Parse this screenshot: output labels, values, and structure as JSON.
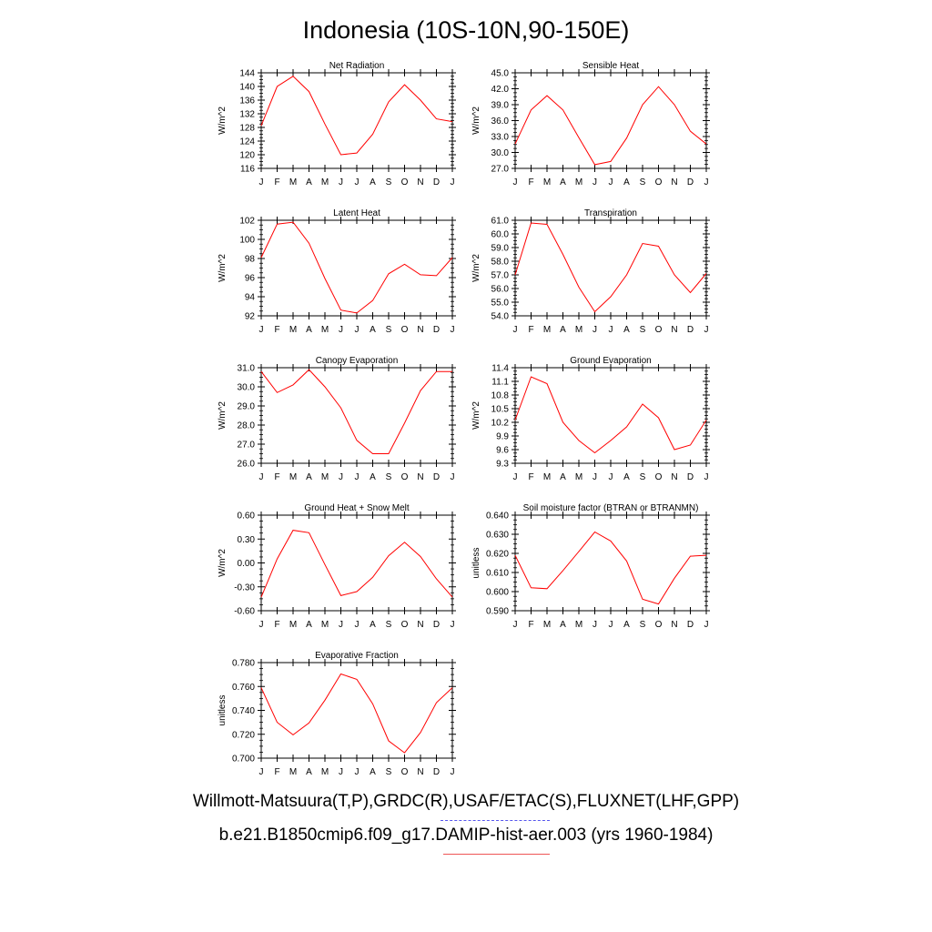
{
  "title": "Indonesia (10S-10N,90-150E)",
  "footer": {
    "observations": "Willmott-Matsuura(T,P),GRDC(R),USAF/ETAC(S),FLUXNET(LHF,GPP)",
    "model": "b.e21.B1850cmip6.f09_g17.DAMIP-hist-aer.003 (yrs 1960-1984)"
  },
  "colors": {
    "model_line": "#ff0000",
    "obs_legend": "#5555ee",
    "axis": "#000000"
  },
  "chart_data": [
    {
      "type": "line",
      "title": "Net Radiation",
      "ylabel": "W/m^2",
      "categories": [
        "J",
        "F",
        "M",
        "A",
        "M",
        "J",
        "J",
        "A",
        "S",
        "O",
        "N",
        "D",
        "J"
      ],
      "yticks": [
        "116",
        "120",
        "124",
        "128",
        "132",
        "136",
        "140",
        "144"
      ],
      "ylim": [
        116,
        144
      ],
      "series": [
        {
          "values": [
            128.5,
            140.0,
            143.0,
            138.5,
            129.0,
            120.0,
            120.5,
            126.0,
            135.5,
            140.5,
            136.0,
            130.5,
            129.7
          ]
        }
      ]
    },
    {
      "type": "line",
      "title": "Sensible Heat",
      "ylabel": "W/m^2",
      "categories": [
        "J",
        "F",
        "M",
        "A",
        "M",
        "J",
        "J",
        "A",
        "S",
        "O",
        "N",
        "D",
        "J"
      ],
      "yticks": [
        "27.0",
        "30.0",
        "33.0",
        "36.0",
        "39.0",
        "42.0",
        "45.0"
      ],
      "ylim": [
        27,
        45
      ],
      "series": [
        {
          "values": [
            31.6,
            38.0,
            40.7,
            38.0,
            32.8,
            27.7,
            28.3,
            32.7,
            39.0,
            42.4,
            39.0,
            34.0,
            31.6
          ]
        }
      ]
    },
    {
      "type": "line",
      "title": "Latent Heat",
      "ylabel": "W/m^2",
      "categories": [
        "J",
        "F",
        "M",
        "A",
        "M",
        "J",
        "J",
        "A",
        "S",
        "O",
        "N",
        "D",
        "J"
      ],
      "yticks": [
        "92",
        "94",
        "96",
        "98",
        "100",
        "102"
      ],
      "ylim": [
        92,
        102
      ],
      "series": [
        {
          "values": [
            98.1,
            101.6,
            101.8,
            99.6,
            95.9,
            92.6,
            92.3,
            93.6,
            96.4,
            97.4,
            96.3,
            96.2,
            98.1
          ]
        }
      ]
    },
    {
      "type": "line",
      "title": "Transpiration",
      "ylabel": "W/m^2",
      "categories": [
        "J",
        "F",
        "M",
        "A",
        "M",
        "J",
        "J",
        "A",
        "S",
        "O",
        "N",
        "D",
        "J"
      ],
      "yticks": [
        "54.0",
        "55.0",
        "56.0",
        "57.0",
        "58.0",
        "59.0",
        "60.0",
        "61.0"
      ],
      "ylim": [
        54,
        61
      ],
      "series": [
        {
          "values": [
            57.0,
            60.8,
            60.7,
            58.5,
            56.1,
            54.3,
            55.4,
            57.0,
            59.3,
            59.1,
            57.0,
            55.7,
            57.1
          ]
        }
      ]
    },
    {
      "type": "line",
      "title": "Canopy Evaporation",
      "ylabel": "W/m^2",
      "categories": [
        "J",
        "F",
        "M",
        "A",
        "M",
        "J",
        "J",
        "A",
        "S",
        "O",
        "N",
        "D",
        "J"
      ],
      "yticks": [
        "26.0",
        "27.0",
        "28.0",
        "29.0",
        "30.0",
        "31.0"
      ],
      "ylim": [
        26,
        31
      ],
      "series": [
        {
          "values": [
            30.8,
            29.7,
            30.1,
            30.9,
            30.0,
            28.9,
            27.2,
            26.5,
            26.5,
            28.1,
            29.8,
            30.8,
            30.8
          ]
        }
      ]
    },
    {
      "type": "line",
      "title": "Ground Evaporation",
      "ylabel": "W/m^2",
      "categories": [
        "J",
        "F",
        "M",
        "A",
        "M",
        "J",
        "J",
        "A",
        "S",
        "O",
        "N",
        "D",
        "J"
      ],
      "yticks": [
        "9.3",
        "9.6",
        "9.9",
        "10.2",
        "10.5",
        "10.8",
        "11.1",
        "11.4"
      ],
      "ylim": [
        9.3,
        11.4
      ],
      "series": [
        {
          "values": [
            10.25,
            11.2,
            11.05,
            10.2,
            9.8,
            9.53,
            9.8,
            10.1,
            10.6,
            10.3,
            9.6,
            9.7,
            10.25
          ]
        }
      ]
    },
    {
      "type": "line",
      "title": "Ground Heat + Snow Melt",
      "ylabel": "W/m^2",
      "categories": [
        "J",
        "F",
        "M",
        "A",
        "M",
        "J",
        "J",
        "A",
        "S",
        "O",
        "N",
        "D",
        "J"
      ],
      "yticks": [
        "-0.60",
        "-0.30",
        "0.00",
        "0.30",
        "0.60"
      ],
      "ylim": [
        -0.6,
        0.6
      ],
      "series": [
        {
          "values": [
            -0.43,
            0.05,
            0.41,
            0.38,
            -0.02,
            -0.41,
            -0.36,
            -0.18,
            0.09,
            0.26,
            0.08,
            -0.2,
            -0.43
          ]
        }
      ]
    },
    {
      "type": "line",
      "title": "Soil moisture factor (BTRAN or BTRANMN)",
      "ylabel": "unitless",
      "categories": [
        "J",
        "F",
        "M",
        "A",
        "M",
        "J",
        "J",
        "A",
        "S",
        "O",
        "N",
        "D",
        "J"
      ],
      "yticks": [
        "0.590",
        "0.600",
        "0.610",
        "0.620",
        "0.630",
        "0.640"
      ],
      "ylim": [
        0.59,
        0.64
      ],
      "series": [
        {
          "values": [
            0.619,
            0.602,
            0.6015,
            0.611,
            0.621,
            0.6312,
            0.6265,
            0.616,
            0.596,
            0.5935,
            0.607,
            0.6185,
            0.619
          ]
        }
      ]
    },
    {
      "type": "line",
      "title": "Evaporative Fraction",
      "ylabel": "unitless",
      "categories": [
        "J",
        "F",
        "M",
        "A",
        "M",
        "J",
        "J",
        "A",
        "S",
        "O",
        "N",
        "D",
        "J"
      ],
      "yticks": [
        "0.700",
        "0.720",
        "0.740",
        "0.760",
        "0.780"
      ],
      "ylim": [
        0.7,
        0.78
      ],
      "series": [
        {
          "values": [
            0.759,
            0.73,
            0.7195,
            0.7295,
            0.7485,
            0.7705,
            0.766,
            0.7455,
            0.7145,
            0.7045,
            0.7215,
            0.7465,
            0.759
          ]
        }
      ]
    }
  ]
}
